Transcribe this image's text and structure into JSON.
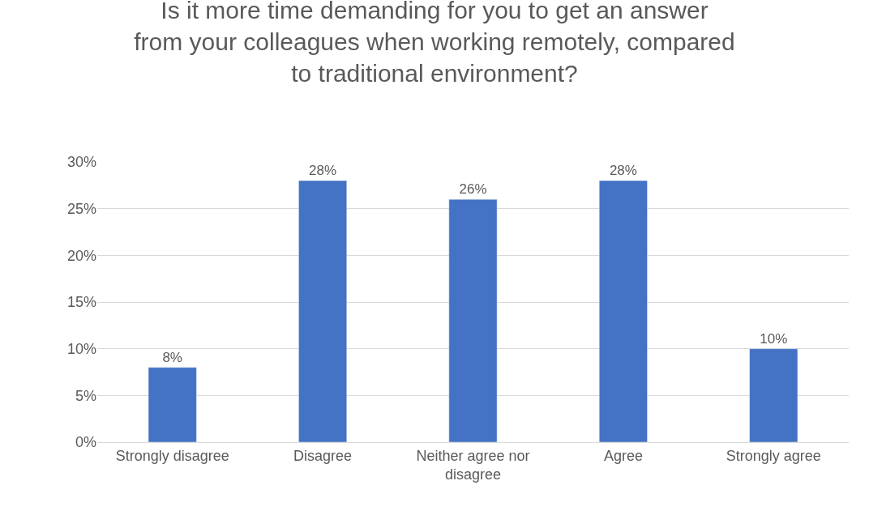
{
  "chart_data": {
    "type": "bar",
    "title": "Is it more time demanding for you to get an answer from your colleagues when working remotely, compared to traditional environment?",
    "categories": [
      "Strongly disagree",
      "Disagree",
      "Neither agree nor disagree",
      "Agree",
      "Strongly agree"
    ],
    "values": [
      8,
      28,
      26,
      28,
      10
    ],
    "value_labels": [
      "8%",
      "28%",
      "26%",
      "28%",
      "10%"
    ],
    "color": "#4472c4",
    "ylim": [
      0,
      30
    ],
    "yticks": [
      {
        "value": 0,
        "label": "0%"
      },
      {
        "value": 5,
        "label": "5%"
      },
      {
        "value": 10,
        "label": "10%"
      },
      {
        "value": 15,
        "label": "15%"
      },
      {
        "value": 20,
        "label": "20%"
      },
      {
        "value": 25,
        "label": "25%"
      },
      {
        "value": 30,
        "label": "30%"
      }
    ],
    "grid": "y",
    "legend": false
  }
}
